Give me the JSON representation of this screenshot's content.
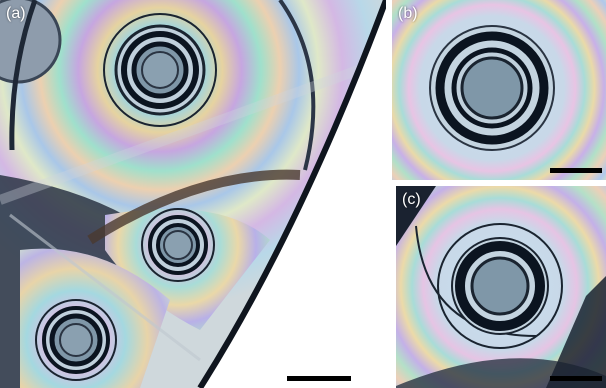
{
  "figure": {
    "panels": [
      {
        "id": "a",
        "label": "(a)"
      },
      {
        "id": "b",
        "label": "(b)"
      },
      {
        "id": "c",
        "label": "(c)"
      }
    ]
  },
  "colors": {
    "background": "#ffffff",
    "droplet_core": "#7f97a8",
    "dark_ring": "#0b1420",
    "film_interference": [
      "#d9b3e0",
      "#9fd4e0",
      "#e6d3a0",
      "#a9c7e8",
      "#dfe8c8"
    ],
    "scale_bar": "#000000"
  }
}
